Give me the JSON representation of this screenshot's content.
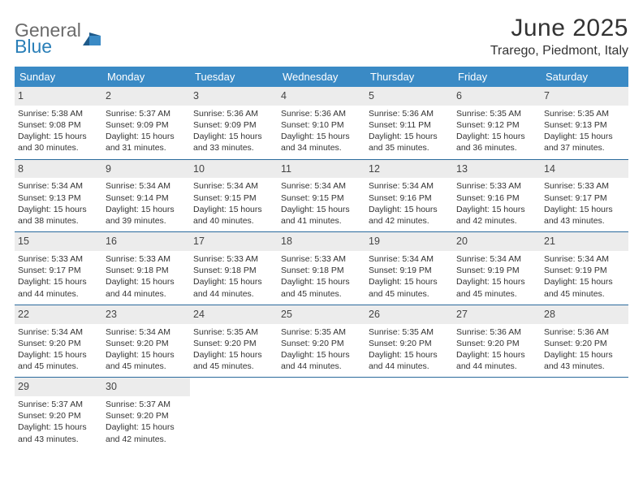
{
  "logo": {
    "text_gray": "General",
    "text_blue": "Blue"
  },
  "header": {
    "title": "June 2025",
    "location": "Trarego, Piedmont, Italy"
  },
  "colors": {
    "header_bg": "#3a8ac5",
    "row_border": "#2a6a9c",
    "daynum_bg": "#ececec"
  },
  "weekdays": [
    "Sunday",
    "Monday",
    "Tuesday",
    "Wednesday",
    "Thursday",
    "Friday",
    "Saturday"
  ],
  "weeks": [
    [
      {
        "day": "1",
        "sunrise": "5:38 AM",
        "sunset": "9:08 PM",
        "daylight": "15 hours and 30 minutes."
      },
      {
        "day": "2",
        "sunrise": "5:37 AM",
        "sunset": "9:09 PM",
        "daylight": "15 hours and 31 minutes."
      },
      {
        "day": "3",
        "sunrise": "5:36 AM",
        "sunset": "9:09 PM",
        "daylight": "15 hours and 33 minutes."
      },
      {
        "day": "4",
        "sunrise": "5:36 AM",
        "sunset": "9:10 PM",
        "daylight": "15 hours and 34 minutes."
      },
      {
        "day": "5",
        "sunrise": "5:36 AM",
        "sunset": "9:11 PM",
        "daylight": "15 hours and 35 minutes."
      },
      {
        "day": "6",
        "sunrise": "5:35 AM",
        "sunset": "9:12 PM",
        "daylight": "15 hours and 36 minutes."
      },
      {
        "day": "7",
        "sunrise": "5:35 AM",
        "sunset": "9:13 PM",
        "daylight": "15 hours and 37 minutes."
      }
    ],
    [
      {
        "day": "8",
        "sunrise": "5:34 AM",
        "sunset": "9:13 PM",
        "daylight": "15 hours and 38 minutes."
      },
      {
        "day": "9",
        "sunrise": "5:34 AM",
        "sunset": "9:14 PM",
        "daylight": "15 hours and 39 minutes."
      },
      {
        "day": "10",
        "sunrise": "5:34 AM",
        "sunset": "9:15 PM",
        "daylight": "15 hours and 40 minutes."
      },
      {
        "day": "11",
        "sunrise": "5:34 AM",
        "sunset": "9:15 PM",
        "daylight": "15 hours and 41 minutes."
      },
      {
        "day": "12",
        "sunrise": "5:34 AM",
        "sunset": "9:16 PM",
        "daylight": "15 hours and 42 minutes."
      },
      {
        "day": "13",
        "sunrise": "5:33 AM",
        "sunset": "9:16 PM",
        "daylight": "15 hours and 42 minutes."
      },
      {
        "day": "14",
        "sunrise": "5:33 AM",
        "sunset": "9:17 PM",
        "daylight": "15 hours and 43 minutes."
      }
    ],
    [
      {
        "day": "15",
        "sunrise": "5:33 AM",
        "sunset": "9:17 PM",
        "daylight": "15 hours and 44 minutes."
      },
      {
        "day": "16",
        "sunrise": "5:33 AM",
        "sunset": "9:18 PM",
        "daylight": "15 hours and 44 minutes."
      },
      {
        "day": "17",
        "sunrise": "5:33 AM",
        "sunset": "9:18 PM",
        "daylight": "15 hours and 44 minutes."
      },
      {
        "day": "18",
        "sunrise": "5:33 AM",
        "sunset": "9:18 PM",
        "daylight": "15 hours and 45 minutes."
      },
      {
        "day": "19",
        "sunrise": "5:34 AM",
        "sunset": "9:19 PM",
        "daylight": "15 hours and 45 minutes."
      },
      {
        "day": "20",
        "sunrise": "5:34 AM",
        "sunset": "9:19 PM",
        "daylight": "15 hours and 45 minutes."
      },
      {
        "day": "21",
        "sunrise": "5:34 AM",
        "sunset": "9:19 PM",
        "daylight": "15 hours and 45 minutes."
      }
    ],
    [
      {
        "day": "22",
        "sunrise": "5:34 AM",
        "sunset": "9:20 PM",
        "daylight": "15 hours and 45 minutes."
      },
      {
        "day": "23",
        "sunrise": "5:34 AM",
        "sunset": "9:20 PM",
        "daylight": "15 hours and 45 minutes."
      },
      {
        "day": "24",
        "sunrise": "5:35 AM",
        "sunset": "9:20 PM",
        "daylight": "15 hours and 45 minutes."
      },
      {
        "day": "25",
        "sunrise": "5:35 AM",
        "sunset": "9:20 PM",
        "daylight": "15 hours and 44 minutes."
      },
      {
        "day": "26",
        "sunrise": "5:35 AM",
        "sunset": "9:20 PM",
        "daylight": "15 hours and 44 minutes."
      },
      {
        "day": "27",
        "sunrise": "5:36 AM",
        "sunset": "9:20 PM",
        "daylight": "15 hours and 44 minutes."
      },
      {
        "day": "28",
        "sunrise": "5:36 AM",
        "sunset": "9:20 PM",
        "daylight": "15 hours and 43 minutes."
      }
    ],
    [
      {
        "day": "29",
        "sunrise": "5:37 AM",
        "sunset": "9:20 PM",
        "daylight": "15 hours and 43 minutes."
      },
      {
        "day": "30",
        "sunrise": "5:37 AM",
        "sunset": "9:20 PM",
        "daylight": "15 hours and 42 minutes."
      },
      null,
      null,
      null,
      null,
      null
    ]
  ],
  "labels": {
    "sunrise": "Sunrise:",
    "sunset": "Sunset:",
    "daylight": "Daylight:"
  }
}
